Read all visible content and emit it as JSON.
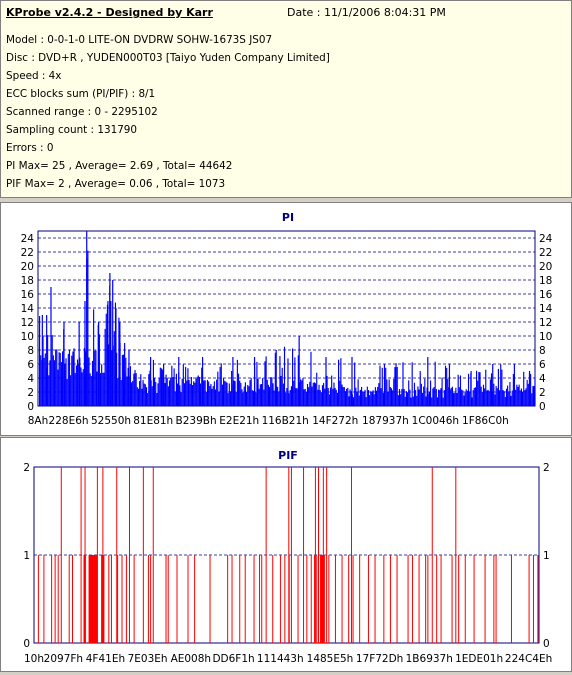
{
  "header": {
    "title": "KProbe v2.4.2 - Designed by Karr",
    "date": "Date : 11/1/2006 8:04:31 PM",
    "lines": [
      "Model : 0-0-1-0 LITE-ON DVDRW SOHW-1673S JS07",
      "Disc : DVD+R , YUDEN000T03 [Taiyo Yuden Company Limited]",
      "Speed : 4x",
      "ECC blocks sum (PI/PIF) : 8/1",
      "Scanned range : 0 - 2295102",
      "Sampling count : 131790",
      "Errors : 0",
      "PI Max= 25 , Average= 2.69 , Total= 44642",
      "PIF Max= 2 , Average= 0.06 , Total= 1073"
    ]
  },
  "colors": {
    "pi": "#0000ff",
    "pif": "#ff0000",
    "title": "#000080",
    "grid": "#000080"
  },
  "chart_data": [
    {
      "type": "bar",
      "title": "PI",
      "ylim": [
        0,
        25
      ],
      "yticks": [
        0,
        2,
        4,
        6,
        8,
        10,
        12,
        14,
        16,
        18,
        20,
        22,
        24
      ],
      "xlim": [
        0,
        2295102
      ],
      "xtick_labels": [
        "8Ah",
        "228E6h",
        "52550h",
        "81E81h",
        "B239Bh",
        "E2E21h",
        "116B21h",
        "14F272h",
        "187937h",
        "1C0046h",
        "1F86C0h"
      ],
      "xtick_values": [
        138,
        141030,
        337232,
        532097,
        729915,
        929313,
        1141537,
        1372786,
        1604407,
        1835078,
        2066112
      ],
      "grid": true,
      "peak_points": [
        [
          20000,
          13
        ],
        [
          40000,
          13
        ],
        [
          60000,
          17
        ],
        [
          120000,
          12
        ],
        [
          190000,
          12
        ],
        [
          217000,
          15
        ],
        [
          225000,
          25
        ],
        [
          280000,
          12
        ],
        [
          323000,
          15
        ],
        [
          332000,
          19
        ],
        [
          345000,
          18
        ],
        [
          360000,
          14
        ],
        [
          378000,
          12
        ],
        [
          400000,
          9
        ],
        [
          420000,
          8
        ],
        [
          520000,
          7
        ],
        [
          580000,
          6
        ],
        [
          650000,
          7
        ],
        [
          760000,
          7
        ],
        [
          900000,
          7
        ],
        [
          1000000,
          7
        ],
        [
          1100000,
          8
        ],
        [
          1206000,
          10
        ],
        [
          1330000,
          7
        ],
        [
          1450000,
          7
        ],
        [
          1600000,
          6
        ],
        [
          1800000,
          7
        ],
        [
          1900000,
          6
        ],
        [
          2000000,
          5
        ],
        [
          2100000,
          6
        ],
        [
          2200000,
          6
        ],
        [
          2270000,
          5
        ],
        [
          2295000,
          4
        ]
      ],
      "typical_points": [
        [
          0,
          6
        ],
        [
          40000,
          7
        ],
        [
          80000,
          6
        ],
        [
          140000,
          6
        ],
        [
          200000,
          6
        ],
        [
          300000,
          6
        ],
        [
          340000,
          7
        ],
        [
          380000,
          6
        ],
        [
          420000,
          4
        ],
        [
          500000,
          3
        ],
        [
          600000,
          3
        ],
        [
          800000,
          3
        ],
        [
          1000000,
          3
        ],
        [
          1200000,
          3
        ],
        [
          1400000,
          2
        ],
        [
          1600000,
          2
        ],
        [
          1800000,
          2
        ],
        [
          2000000,
          2
        ],
        [
          2200000,
          2
        ],
        [
          2295000,
          2
        ]
      ]
    },
    {
      "type": "bar",
      "title": "PIF",
      "ylim": [
        0,
        2
      ],
      "yticks": [
        0,
        1,
        2
      ],
      "xlim": [
        0,
        2295102
      ],
      "xtick_labels": [
        "10h",
        "2097Fh",
        "4F41Eh",
        "7E03Eh",
        "AE008h",
        "DD6F1h",
        "111443h",
        "1485E5h",
        "17F72Dh",
        "1B6937h",
        "1EDE01h",
        "224C4Eh"
      ],
      "xtick_values": [
        16,
        133503,
        324638,
        516158,
        712712,
        906993,
        1119299,
        1345253,
        1570605,
        1796407,
        2022913,
        2247758
      ],
      "grid": true,
      "spikes_2": [
        124000,
        214000,
        232000,
        288000,
        313000,
        376000,
        434000,
        497000,
        542000,
        1055000,
        1158000,
        1170000,
        1225000,
        1279000,
        1293000,
        1315000,
        1330000,
        1443000,
        1810000,
        1917000
      ],
      "dense_ranges_1": [
        [
          225000,
          236000
        ],
        [
          248000,
          290000
        ],
        [
          305000,
          320000
        ],
        [
          1300000,
          1322000
        ]
      ],
      "spikes_1": [
        20000,
        45000,
        80000,
        96000,
        110000,
        160000,
        175000,
        340000,
        352000,
        380000,
        400000,
        420000,
        455000,
        520000,
        530000,
        600000,
        610000,
        650000,
        700000,
        730000,
        800000,
        880000,
        900000,
        935000,
        960000,
        1000000,
        1025000,
        1035000,
        1085000,
        1120000,
        1140000,
        1160000,
        1200000,
        1240000,
        1260000,
        1275000,
        1285000,
        1340000,
        1370000,
        1400000,
        1430000,
        1450000,
        1480000,
        1520000,
        1550000,
        1590000,
        1620000,
        1650000,
        1700000,
        1720000,
        1750000,
        1780000,
        1790000,
        1830000,
        1850000,
        1900000,
        1930000,
        1960000,
        2000000,
        2050000,
        2090000,
        2100000,
        2170000,
        2250000,
        2270000,
        2290000
      ]
    }
  ]
}
